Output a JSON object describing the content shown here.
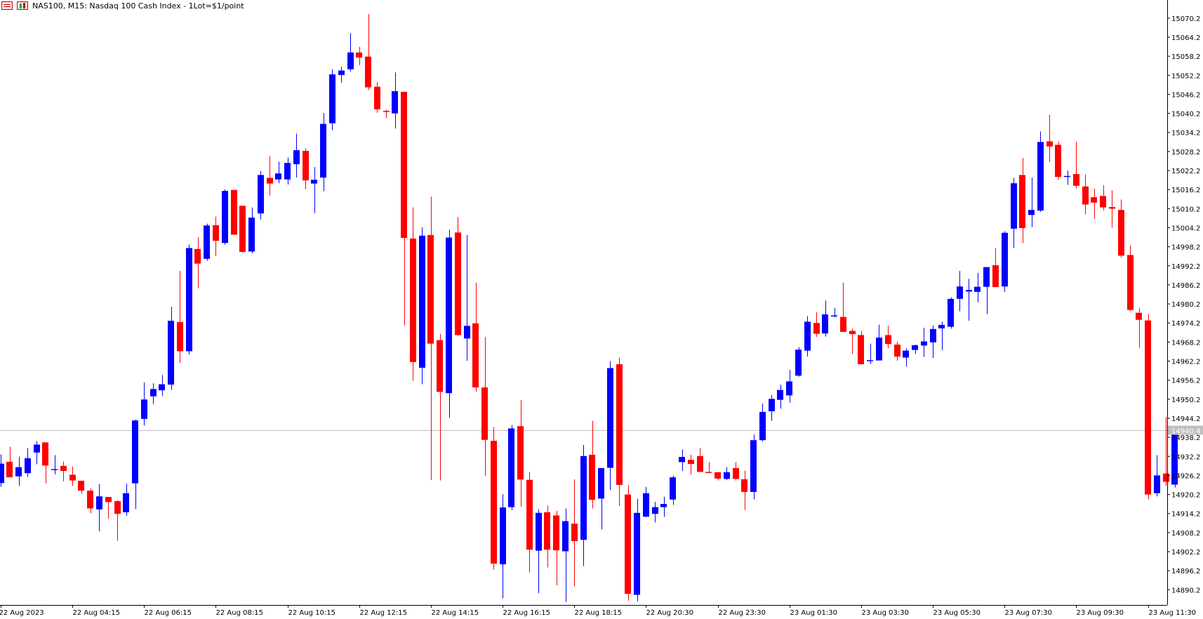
{
  "header": {
    "title": "NAS100, M15:  Nasdaq 100 Cash Index - 1Lot=$1/point"
  },
  "icons": [
    "list-icon",
    "candlestick-chart-icon"
  ],
  "colors": {
    "bull": "#0000ff",
    "bear": "#ff0000",
    "price_line": "#c0c0c0",
    "price_label_bg": "#c0c0c0",
    "axis": "#000000"
  },
  "chart_data": {
    "type": "candlestick",
    "symbol": "NAS100",
    "timeframe": "M15",
    "current_price": "14940.4",
    "price_axis_labels": [
      "15070.2",
      "15064.2",
      "15058.2",
      "15052.2",
      "15046.2",
      "15040.2",
      "15034.2",
      "15028.2",
      "15022.2",
      "15016.2",
      "15010.2",
      "15004.2",
      "14998.2",
      "14992.2",
      "14986.2",
      "14980.2",
      "14974.2",
      "14968.2",
      "14962.2",
      "14956.2",
      "14950.2",
      "14944.2",
      "14938.2",
      "14932.2",
      "14926.2",
      "14920.2",
      "14914.2",
      "14908.2",
      "14902.2",
      "14896.2",
      "14890.2"
    ],
    "time_axis_labels": [
      "22 Aug 2023",
      "22 Aug 04:15",
      "22 Aug 06:15",
      "22 Aug 08:15",
      "22 Aug 10:15",
      "22 Aug 12:15",
      "22 Aug 14:15",
      "22 Aug 16:15",
      "22 Aug 18:15",
      "22 Aug 20:30",
      "22 Aug 23:30",
      "23 Aug 01:30",
      "23 Aug 03:30",
      "23 Aug 05:30",
      "23 Aug 07:30",
      "23 Aug 09:30",
      "23 Aug 11:30"
    ],
    "ylim": [
      14885.4,
      15072.6
    ],
    "candles": [
      [
        14923.8,
        14932.8,
        14922.6,
        14929.9
      ],
      [
        14930.5,
        14935.2,
        14925.7,
        14925.6
      ],
      [
        14925.9,
        14932.1,
        14922.9,
        14928.8
      ],
      [
        14926.9,
        14934.8,
        14925.7,
        14931.6
      ],
      [
        14933.4,
        14937.0,
        14929.7,
        14935.9
      ],
      [
        14936.6,
        14936.6,
        14923.7,
        14929.3
      ],
      [
        14928.0,
        14932.6,
        14926.5,
        14928.2
      ],
      [
        14929.2,
        14930.6,
        14924.3,
        14927.6
      ],
      [
        14926.4,
        14929.0,
        14922.9,
        14924.6
      ],
      [
        14924.5,
        14924.6,
        14920.4,
        14921.4
      ],
      [
        14921.4,
        14922.1,
        14914.3,
        14915.8
      ],
      [
        14915.5,
        14923.5,
        14908.6,
        14919.6
      ],
      [
        14919.4,
        14919.4,
        14912.5,
        14917.8
      ],
      [
        14918.1,
        14918.4,
        14905.6,
        14914.1
      ],
      [
        14914.6,
        14923.6,
        14913.5,
        14920.6
      ],
      [
        14923.7,
        14943.8,
        14915.6,
        14943.5
      ],
      [
        14944.0,
        14955.5,
        14941.9,
        14950.1
      ],
      [
        14951.1,
        14955.2,
        14948.6,
        14953.4
      ],
      [
        14953.0,
        14957.8,
        14951.2,
        14954.9
      ],
      [
        14954.8,
        14979.3,
        14953.1,
        14974.9
      ],
      [
        14974.5,
        14990.6,
        14961.6,
        14965.3
      ],
      [
        14965.3,
        14998.9,
        14964.3,
        14997.8
      ],
      [
        14997.5,
        15001.2,
        14985.1,
        14992.9
      ],
      [
        14994.4,
        15005.5,
        14993.8,
        15004.9
      ],
      [
        15005.0,
        15007.7,
        14995.3,
        15000.1
      ],
      [
        14999.4,
        15016.3,
        14998.9,
        15015.8
      ],
      [
        15016.1,
        15016.1,
        15002.4,
        15002.0
      ],
      [
        15011.1,
        15011.1,
        14996.3,
        14996.6
      ],
      [
        14996.7,
        15010.6,
        14996.1,
        15007.4
      ],
      [
        15008.7,
        15022.1,
        15006.8,
        15020.8
      ],
      [
        15019.9,
        15026.7,
        15014.3,
        15018.1
      ],
      [
        15019.4,
        15025.0,
        15018.2,
        15021.3
      ],
      [
        15019.4,
        15026.3,
        15017.8,
        15024.6
      ],
      [
        15024.2,
        15033.8,
        15020.0,
        15028.6
      ],
      [
        15028.4,
        15029.2,
        15016.3,
        15019.1
      ],
      [
        15018.1,
        15023.3,
        15008.8,
        15019.3
      ],
      [
        15020.0,
        15040.3,
        15015.7,
        15036.9
      ],
      [
        15037.1,
        15054.1,
        15034.9,
        15052.5
      ],
      [
        15052.3,
        15054.9,
        15049.8,
        15053.7
      ],
      [
        15054.1,
        15065.5,
        15053.4,
        15059.4
      ],
      [
        15059.4,
        15061.2,
        15055.4,
        15057.8
      ],
      [
        15058.1,
        15071.5,
        15047.5,
        15048.4
      ],
      [
        15048.6,
        15050.1,
        15040.4,
        15041.5
      ],
      [
        15041.0,
        15041.4,
        15038.7,
        15040.9
      ],
      [
        15040.2,
        15053.1,
        15035.4,
        15047.2
      ],
      [
        15047.0,
        15047.0,
        14973.4,
        15001.0
      ],
      [
        15000.8,
        15010.6,
        14956.0,
        14961.9
      ],
      [
        14960.1,
        15004.3,
        14954.9,
        15001.7
      ],
      [
        15001.9,
        15014.0,
        14924.7,
        14967.7
      ],
      [
        14968.8,
        14970.8,
        14924.6,
        14952.5
      ],
      [
        14952.1,
        15003.6,
        14944.3,
        15001.1
      ],
      [
        15002.7,
        15007.6,
        14970.2,
        14970.4
      ],
      [
        14969.3,
        15001.9,
        14962.3,
        14973.3
      ],
      [
        14974.1,
        14986.9,
        14952.6,
        14953.9
      ],
      [
        14953.9,
        14969.8,
        14926.1,
        14937.4
      ],
      [
        14937.1,
        14941.4,
        14896.5,
        14898.4
      ],
      [
        14898.2,
        14920.3,
        14887.5,
        14916.1
      ],
      [
        14916.2,
        14942.1,
        14915.3,
        14941.0
      ],
      [
        14941.7,
        14949.9,
        14916.4,
        14924.9
      ],
      [
        14924.8,
        14927.3,
        14895.6,
        14902.8
      ],
      [
        14902.5,
        14915.5,
        14889.1,
        14914.4
      ],
      [
        14914.6,
        14916.7,
        14897.2,
        14902.8
      ],
      [
        14913.6,
        14915.0,
        14891.6,
        14902.6
      ],
      [
        14902.3,
        14915.8,
        14886.4,
        14911.8
      ],
      [
        14911.0,
        14925.0,
        14891.2,
        14905.5
      ],
      [
        14905.9,
        14935.8,
        14897.6,
        14932.3
      ],
      [
        14932.7,
        14943.4,
        14915.8,
        14918.5
      ],
      [
        14918.9,
        14928.4,
        14909.2,
        14928.5
      ],
      [
        14928.6,
        14962.2,
        14921.6,
        14960.0
      ],
      [
        14961.2,
        14963.3,
        14916.6,
        14923.2
      ],
      [
        14920.2,
        14923.2,
        14886.7,
        14888.9
      ],
      [
        14888.6,
        14918.8,
        14886.5,
        14914.4
      ],
      [
        14913.2,
        14922.6,
        14913.1,
        14920.6
      ],
      [
        14914.1,
        14917.9,
        14911.4,
        14916.2
      ],
      [
        14916.2,
        14919.5,
        14913.1,
        14917.2
      ],
      [
        14918.6,
        14926.1,
        14916.9,
        14925.6
      ],
      [
        14930.4,
        14934.4,
        14927.6,
        14932.0
      ],
      [
        14931.1,
        14932.7,
        14926.4,
        14929.8
      ],
      [
        14932.3,
        14934.8,
        14927.4,
        14927.3
      ],
      [
        14927.3,
        14930.4,
        14926.9,
        14927.1
      ],
      [
        14927.2,
        14927.3,
        14924.6,
        14925.2
      ],
      [
        14925.1,
        14928.8,
        14924.7,
        14927.2
      ],
      [
        14928.5,
        14930.4,
        14924.6,
        14925.1
      ],
      [
        14925.0,
        14927.7,
        14915.3,
        14921.0
      ],
      [
        14921.0,
        14939.1,
        14918.7,
        14937.3
      ],
      [
        14937.3,
        14948.8,
        14936.9,
        14946.2
      ],
      [
        14946.4,
        14951.5,
        14943.4,
        14950.3
      ],
      [
        14950.0,
        14954.8,
        14947.2,
        14953.1
      ],
      [
        14951.4,
        14959.4,
        14949.1,
        14955.8
      ],
      [
        14957.6,
        14966.6,
        14957.3,
        14965.8
      ],
      [
        14965.5,
        14976.4,
        14963.6,
        14974.6
      ],
      [
        14974.2,
        14977.6,
        14969.8,
        14970.8
      ],
      [
        14970.9,
        14981.3,
        14969.9,
        14976.9
      ],
      [
        14976.4,
        14979.0,
        14975.9,
        14976.6
      ],
      [
        14976.1,
        14986.9,
        14971.4,
        14971.4
      ],
      [
        14971.7,
        14972.4,
        14964.4,
        14970.7
      ],
      [
        14970.4,
        14971.7,
        14962.5,
        14961.2
      ],
      [
        14962.4,
        14967.7,
        14961.3,
        14962.5
      ],
      [
        14962.4,
        14973.7,
        14964.2,
        14969.6
      ],
      [
        14970.4,
        14973.4,
        14966.2,
        14967.6
      ],
      [
        14967.4,
        14968.3,
        14962.3,
        14963.6
      ],
      [
        14963.3,
        14966.2,
        14960.4,
        14965.5
      ],
      [
        14965.7,
        14967.4,
        14964.4,
        14967.2
      ],
      [
        14967.1,
        14972.7,
        14963.5,
        14968.4
      ],
      [
        14968.1,
        14973.4,
        14963.2,
        14972.3
      ],
      [
        14972.5,
        14974.6,
        14965.6,
        14973.6
      ],
      [
        14973.0,
        14982.3,
        14972.4,
        14981.8
      ],
      [
        14981.8,
        14990.6,
        14977.9,
        14985.7
      ],
      [
        14984.1,
        14988.1,
        14974.9,
        14984.6
      ],
      [
        14984.0,
        14990.0,
        14980.7,
        14985.6
      ],
      [
        14985.6,
        14991.2,
        14977.0,
        14991.8
      ],
      [
        14992.4,
        14997.8,
        14985.8,
        14985.5
      ],
      [
        14985.7,
        15003.1,
        14984.0,
        15002.6
      ],
      [
        15003.9,
        15019.9,
        14997.8,
        15018.2
      ],
      [
        15020.8,
        15026.2,
        14999.4,
        15004.1
      ],
      [
        15008.2,
        15020.0,
        15004.4,
        15009.8
      ],
      [
        15009.6,
        15034.5,
        15009.2,
        15031.2
      ],
      [
        15031.4,
        15039.8,
        15024.9,
        15029.8
      ],
      [
        15030.3,
        15031.3,
        15019.3,
        15020.2
      ],
      [
        15020.4,
        15022.2,
        15017.7,
        15020.5
      ],
      [
        15021.1,
        15031.3,
        15016.6,
        15017.4
      ],
      [
        15017.2,
        15021.0,
        15008.4,
        15011.5
      ],
      [
        15013.8,
        15016.5,
        15007.0,
        15012.1
      ],
      [
        15014.2,
        15017.6,
        15009.6,
        15010.6
      ],
      [
        15010.7,
        15016.0,
        15004.2,
        15010.2
      ],
      [
        15009.8,
        15013.1,
        14994.8,
        14995.4
      ],
      [
        14995.6,
        14998.6,
        14978.0,
        14978.3
      ],
      [
        14977.4,
        14979.0,
        14966.4,
        14975.2
      ],
      [
        14975.0,
        14977.0,
        14918.7,
        14920.2
      ],
      [
        14920.6,
        14932.6,
        14919.6,
        14926.2
      ],
      [
        14926.8,
        14944.6,
        14922.9,
        14924.2
      ],
      [
        14923.3,
        14941.0,
        14922.4,
        14940.4
      ]
    ]
  }
}
